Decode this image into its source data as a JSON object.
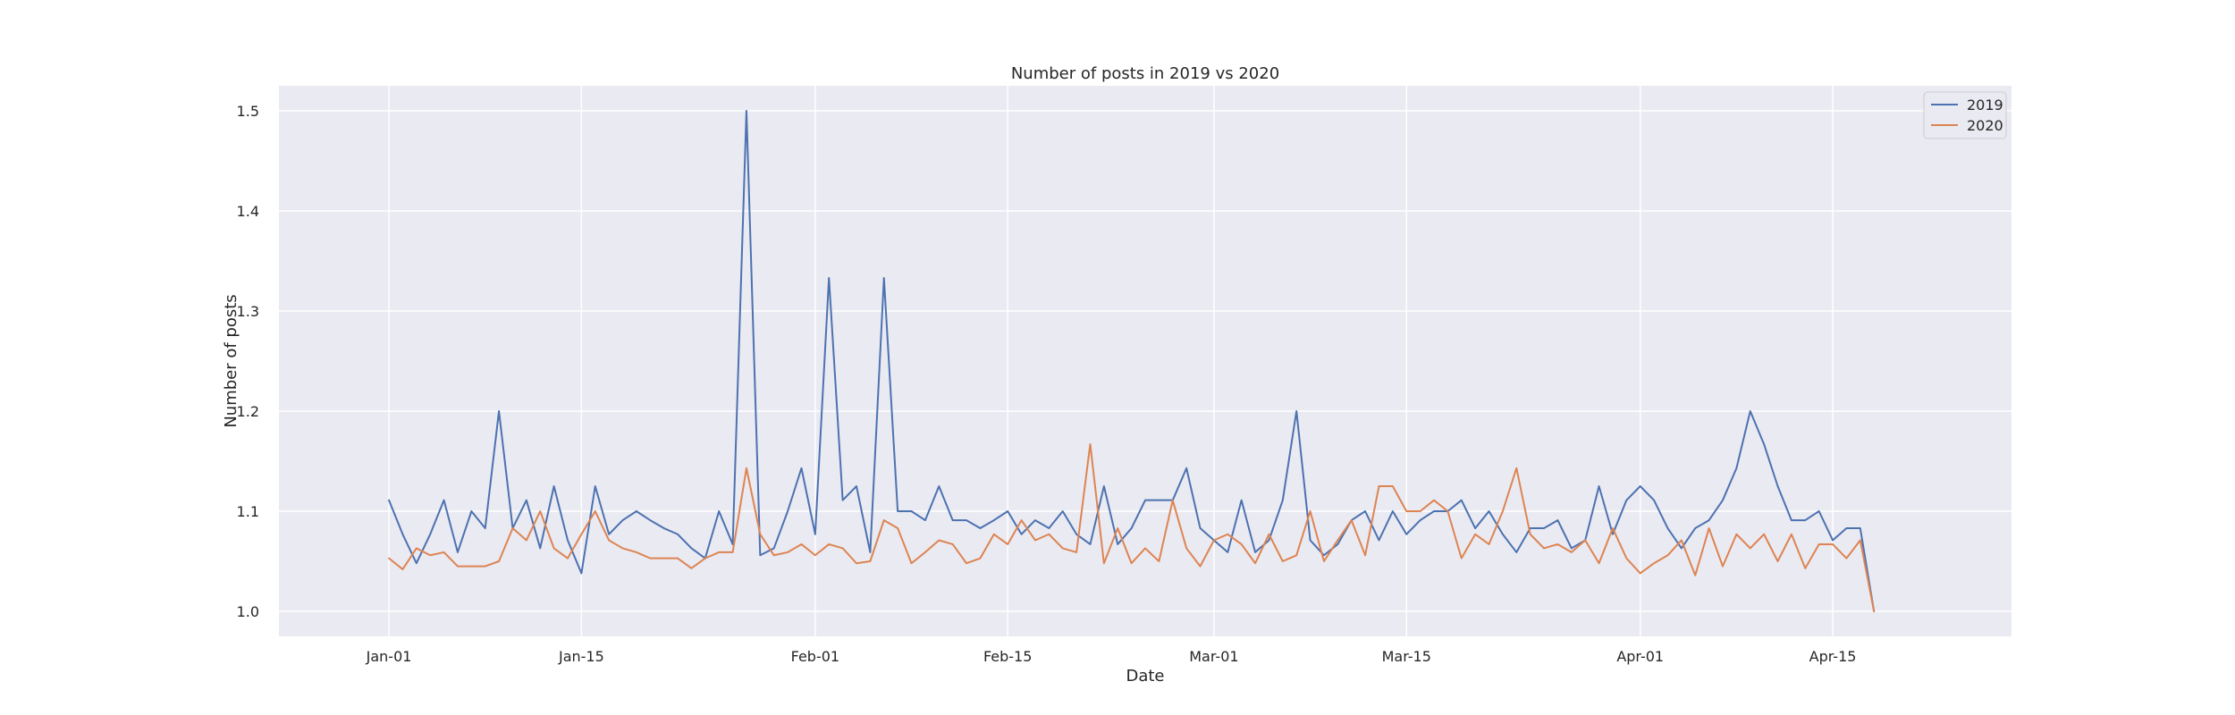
{
  "chart_data": {
    "type": "line",
    "title": "Number of posts in 2019 vs 2020",
    "xlabel": "Date",
    "ylabel": "Number of posts",
    "x_start": "2020-01-01",
    "xlim": [
      "2019-12-24",
      "2020-04-28"
    ],
    "ylim": [
      0.975,
      1.525
    ],
    "x_tick_labels": [
      "Jan-01",
      "Jan-15",
      "Feb-01",
      "Feb-15",
      "Mar-01",
      "Mar-15",
      "Apr-01",
      "Apr-15"
    ],
    "x_ticks": [
      "2020-01-01",
      "2020-01-15",
      "2020-02-01",
      "2020-02-15",
      "2020-03-01",
      "2020-03-15",
      "2020-04-01",
      "2020-04-15"
    ],
    "y_ticks": [
      1.0,
      1.1,
      1.2,
      1.3,
      1.4,
      1.5
    ],
    "y_tick_labels": [
      "1.0",
      "1.1",
      "1.2",
      "1.3",
      "1.4",
      "1.5"
    ],
    "grid": true,
    "legend": "top-right",
    "series": [
      {
        "name": "2019",
        "color": "#4c72b0",
        "values": [
          1.111,
          1.077,
          1.048,
          1.077,
          1.111,
          1.059,
          1.1,
          1.083,
          1.2,
          1.083,
          1.111,
          1.063,
          1.125,
          1.071,
          1.038,
          1.125,
          1.077,
          1.091,
          1.1,
          1.091,
          1.083,
          1.077,
          1.063,
          1.053,
          1.1,
          1.067,
          1.5,
          1.056,
          1.063,
          1.1,
          1.143,
          1.077,
          1.333,
          1.111,
          1.125,
          1.059,
          1.333,
          1.1,
          1.1,
          1.091,
          1.125,
          1.091,
          1.091,
          1.083,
          1.091,
          1.1,
          1.077,
          1.091,
          1.083,
          1.1,
          1.077,
          1.067,
          1.125,
          1.067,
          1.083,
          1.111,
          1.111,
          1.111,
          1.143,
          1.083,
          1.071,
          1.059,
          1.111,
          1.059,
          1.071,
          1.111,
          1.2,
          1.071,
          1.056,
          1.067,
          1.091,
          1.1,
          1.071,
          1.1,
          1.077,
          1.091,
          1.1,
          1.1,
          1.111,
          1.083,
          1.1,
          1.077,
          1.059,
          1.083,
          1.083,
          1.091,
          1.063,
          1.071,
          1.125,
          1.077,
          1.111,
          1.125,
          1.111,
          1.083,
          1.063,
          1.083,
          1.091,
          1.111,
          1.143,
          1.2,
          1.167,
          1.125,
          1.091,
          1.091,
          1.1,
          1.071,
          1.083,
          1.083,
          1.0
        ]
      },
      {
        "name": "2020",
        "color": "#dd8452",
        "values": [
          1.053,
          1.042,
          1.063,
          1.056,
          1.059,
          1.045,
          1.045,
          1.045,
          1.05,
          1.083,
          1.071,
          1.1,
          1.063,
          1.053,
          1.077,
          1.1,
          1.071,
          1.063,
          1.059,
          1.053,
          1.053,
          1.053,
          1.043,
          1.053,
          1.059,
          1.059,
          1.143,
          1.077,
          1.056,
          1.059,
          1.067,
          1.056,
          1.067,
          1.063,
          1.048,
          1.05,
          1.091,
          1.083,
          1.048,
          1.059,
          1.071,
          1.067,
          1.048,
          1.053,
          1.077,
          1.067,
          1.091,
          1.071,
          1.077,
          1.063,
          1.059,
          1.167,
          1.048,
          1.083,
          1.048,
          1.063,
          1.05,
          1.111,
          1.063,
          1.045,
          1.071,
          1.077,
          1.067,
          1.048,
          1.077,
          1.05,
          1.056,
          1.1,
          1.05,
          1.071,
          1.091,
          1.056,
          1.125,
          1.125,
          1.1,
          1.1,
          1.111,
          1.1,
          1.053,
          1.077,
          1.067,
          1.1,
          1.143,
          1.077,
          1.063,
          1.067,
          1.059,
          1.071,
          1.048,
          1.083,
          1.053,
          1.038,
          1.048,
          1.056,
          1.071,
          1.036,
          1.083,
          1.045,
          1.077,
          1.063,
          1.077,
          1.05,
          1.077,
          1.043,
          1.067,
          1.067,
          1.053,
          1.071,
          1.0
        ]
      }
    ]
  }
}
